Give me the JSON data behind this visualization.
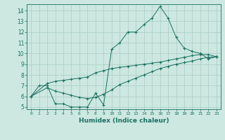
{
  "xlabel": "Humidex (Indice chaleur)",
  "bg_color": "#cce8e0",
  "grid_color": "#aaccc4",
  "line_color": "#1a7060",
  "xlim": [
    -0.5,
    23.5
  ],
  "ylim": [
    4.8,
    14.6
  ],
  "xticks": [
    0,
    1,
    2,
    3,
    4,
    5,
    6,
    7,
    8,
    9,
    10,
    11,
    12,
    13,
    14,
    15,
    16,
    17,
    18,
    19,
    20,
    21,
    22,
    23
  ],
  "yticks": [
    5,
    6,
    7,
    8,
    9,
    10,
    11,
    12,
    13,
    14
  ],
  "line1_x": [
    0,
    1,
    2,
    3,
    4,
    5,
    6,
    7,
    8,
    9,
    10,
    11,
    12,
    13,
    14,
    15,
    16,
    17,
    18,
    19,
    20,
    21,
    22,
    23
  ],
  "line1_y": [
    6.0,
    7.0,
    7.0,
    5.3,
    5.3,
    5.0,
    5.0,
    5.0,
    6.3,
    5.2,
    10.4,
    11.0,
    12.0,
    12.0,
    12.7,
    13.3,
    14.4,
    13.3,
    11.5,
    10.5,
    10.2,
    10.0,
    9.5,
    9.7
  ],
  "line2_x": [
    0,
    2,
    3,
    4,
    5,
    6,
    7,
    8,
    9,
    10,
    11,
    12,
    13,
    14,
    15,
    16,
    17,
    18,
    19,
    20,
    21,
    22,
    23
  ],
  "line2_y": [
    6.0,
    7.2,
    7.4,
    7.5,
    7.6,
    7.7,
    7.8,
    8.2,
    8.4,
    8.6,
    8.7,
    8.8,
    8.9,
    9.0,
    9.1,
    9.2,
    9.35,
    9.5,
    9.65,
    9.8,
    9.9,
    9.9,
    9.7
  ],
  "line3_x": [
    0,
    2,
    3,
    4,
    5,
    6,
    7,
    8,
    9,
    10,
    11,
    12,
    13,
    14,
    15,
    16,
    17,
    18,
    19,
    20,
    21,
    22,
    23
  ],
  "line3_y": [
    6.0,
    6.8,
    6.5,
    6.3,
    6.1,
    5.9,
    5.8,
    5.9,
    6.2,
    6.6,
    7.1,
    7.4,
    7.7,
    8.0,
    8.3,
    8.6,
    8.8,
    9.0,
    9.15,
    9.3,
    9.5,
    9.65,
    9.7
  ]
}
